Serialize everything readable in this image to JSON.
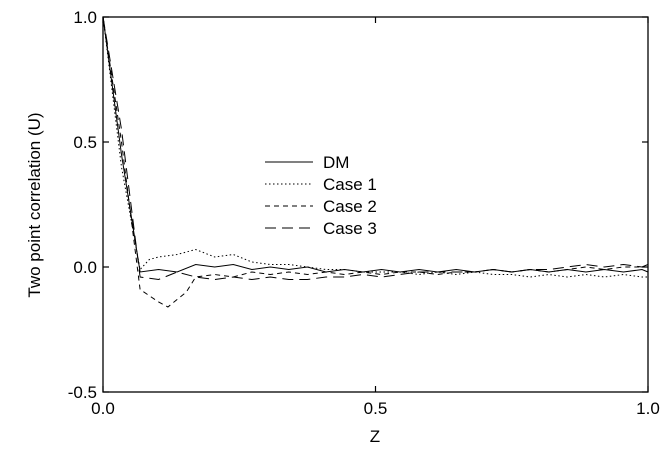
{
  "chart_data": {
    "type": "line",
    "xlabel": "Z",
    "ylabel": "Two point correlation (U)",
    "xlim": [
      0.0,
      1.0
    ],
    "ylim": [
      -0.5,
      1.0
    ],
    "xticks": [
      "0.0",
      "0.5",
      "1.0"
    ],
    "yticks": [
      "-0.5",
      "0.0",
      "0.5",
      "1.0"
    ],
    "xtick_values": [
      0.0,
      0.5,
      1.0
    ],
    "ytick_values": [
      -0.5,
      0.0,
      0.5,
      1.0
    ],
    "grid": false,
    "legend_position": "center",
    "series": [
      {
        "name": "DM",
        "dash": "solid",
        "x": [
          0.0,
          0.034,
          0.068,
          0.102,
          0.136,
          0.17,
          0.205,
          0.239,
          0.273,
          0.307,
          0.341,
          0.375,
          0.409,
          0.443,
          0.477,
          0.511,
          0.545,
          0.58,
          0.614,
          0.648,
          0.682,
          0.716,
          0.75,
          0.784,
          0.818,
          0.852,
          0.886,
          0.92,
          0.955,
          0.989,
          1.0
        ],
        "y": [
          1.0,
          0.45,
          -0.02,
          -0.01,
          -0.02,
          0.01,
          0.0,
          0.01,
          -0.01,
          0.0,
          -0.01,
          0.0,
          -0.02,
          -0.01,
          -0.02,
          -0.01,
          -0.02,
          -0.01,
          -0.02,
          -0.01,
          -0.02,
          -0.01,
          -0.02,
          -0.01,
          -0.02,
          -0.01,
          -0.02,
          -0.01,
          -0.02,
          -0.01,
          -0.02
        ]
      },
      {
        "name": "Case 1",
        "dash": "dotted",
        "x": [
          0.0,
          0.034,
          0.068,
          0.085,
          0.102,
          0.136,
          0.17,
          0.205,
          0.239,
          0.273,
          0.307,
          0.341,
          0.375,
          0.409,
          0.443,
          0.477,
          0.511,
          0.545,
          0.58,
          0.614,
          0.648,
          0.682,
          0.716,
          0.75,
          0.784,
          0.818,
          0.852,
          0.886,
          0.92,
          0.955,
          0.989,
          1.0
        ],
        "y": [
          1.0,
          0.4,
          -0.01,
          0.03,
          0.04,
          0.05,
          0.07,
          0.04,
          0.05,
          0.02,
          0.01,
          0.01,
          0.0,
          -0.01,
          -0.01,
          -0.02,
          -0.02,
          -0.02,
          -0.03,
          -0.02,
          -0.03,
          -0.02,
          -0.03,
          -0.03,
          -0.04,
          -0.03,
          -0.04,
          -0.03,
          -0.04,
          -0.03,
          -0.04,
          -0.04
        ]
      },
      {
        "name": "Case 2",
        "dash": "dashed",
        "x": [
          0.0,
          0.034,
          0.068,
          0.102,
          0.119,
          0.136,
          0.153,
          0.17,
          0.205,
          0.239,
          0.273,
          0.307,
          0.341,
          0.375,
          0.409,
          0.443,
          0.477,
          0.511,
          0.545,
          0.58,
          0.614,
          0.648,
          0.682,
          0.716,
          0.75,
          0.784,
          0.818,
          0.852,
          0.886,
          0.92,
          0.955,
          0.989,
          1.0
        ],
        "y": [
          1.0,
          0.5,
          -0.09,
          -0.14,
          -0.16,
          -0.13,
          -0.1,
          -0.04,
          -0.03,
          -0.04,
          -0.02,
          -0.03,
          -0.02,
          -0.03,
          -0.02,
          -0.03,
          -0.02,
          -0.03,
          -0.02,
          -0.02,
          -0.03,
          -0.02,
          -0.02,
          -0.01,
          -0.02,
          -0.01,
          -0.02,
          -0.01,
          0.0,
          -0.01,
          0.0,
          0.0,
          0.0
        ]
      },
      {
        "name": "Case 3",
        "dash": "longdash",
        "x": [
          0.0,
          0.034,
          0.068,
          0.102,
          0.136,
          0.17,
          0.205,
          0.239,
          0.273,
          0.307,
          0.341,
          0.375,
          0.409,
          0.443,
          0.477,
          0.511,
          0.545,
          0.58,
          0.614,
          0.648,
          0.682,
          0.716,
          0.75,
          0.784,
          0.818,
          0.852,
          0.886,
          0.92,
          0.955,
          0.989,
          1.0
        ],
        "y": [
          1.0,
          0.55,
          -0.04,
          -0.05,
          -0.02,
          -0.04,
          -0.05,
          -0.04,
          -0.05,
          -0.04,
          -0.05,
          -0.05,
          -0.04,
          -0.04,
          -0.03,
          -0.04,
          -0.03,
          -0.02,
          -0.02,
          -0.02,
          -0.02,
          -0.01,
          -0.02,
          -0.01,
          -0.01,
          0.0,
          0.01,
          0.0,
          0.01,
          0.0,
          0.01
        ]
      }
    ]
  }
}
